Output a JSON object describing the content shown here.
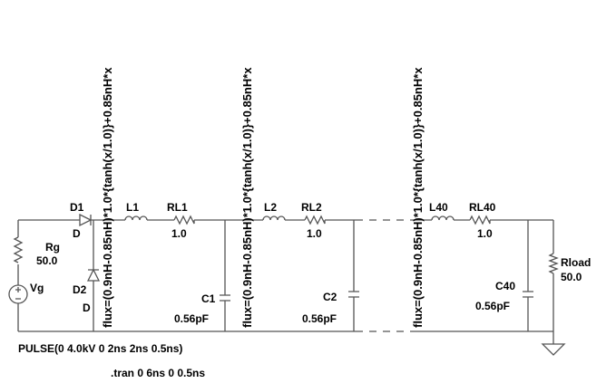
{
  "schematic": {
    "source": {
      "name": "Vg",
      "resistor": "Rg",
      "resistance": "50.0",
      "waveform": "PULSE(0 4.0kV 0 2ns 2ns 0.5ns)"
    },
    "diodes": [
      {
        "name": "D1",
        "model": "D"
      },
      {
        "name": "D2",
        "model": "D"
      }
    ],
    "sections": [
      {
        "inductor": "L1",
        "flux": "flux=(0.9nH-0.85nH)*1.0*{tanh(x/1.0)}+0.85nH*x",
        "resistor": "RL1",
        "resistance": "1.0",
        "capacitor": "C1",
        "capacitance": "0.56pF"
      },
      {
        "inductor": "L2",
        "flux": "flux=(0.9nH-0.85nH)*1.0*{tanh(x/1.0)}+0.85nH*x",
        "resistor": "RL2",
        "resistance": "1.0",
        "capacitor": "C2",
        "capacitance": "0.56pF"
      },
      {
        "inductor": "L40",
        "flux": "flux=(0.9nH-0.85nH)*1.0*{tanh(x/1.0)}+0.85nH*x",
        "resistor": "RL40",
        "resistance": "1.0",
        "capacitor": "C40",
        "capacitance": "0.56pF"
      }
    ],
    "load": {
      "name": "Rload",
      "resistance": "50.0"
    },
    "directive": ".tran 0 6ns 0 0.5ns"
  }
}
